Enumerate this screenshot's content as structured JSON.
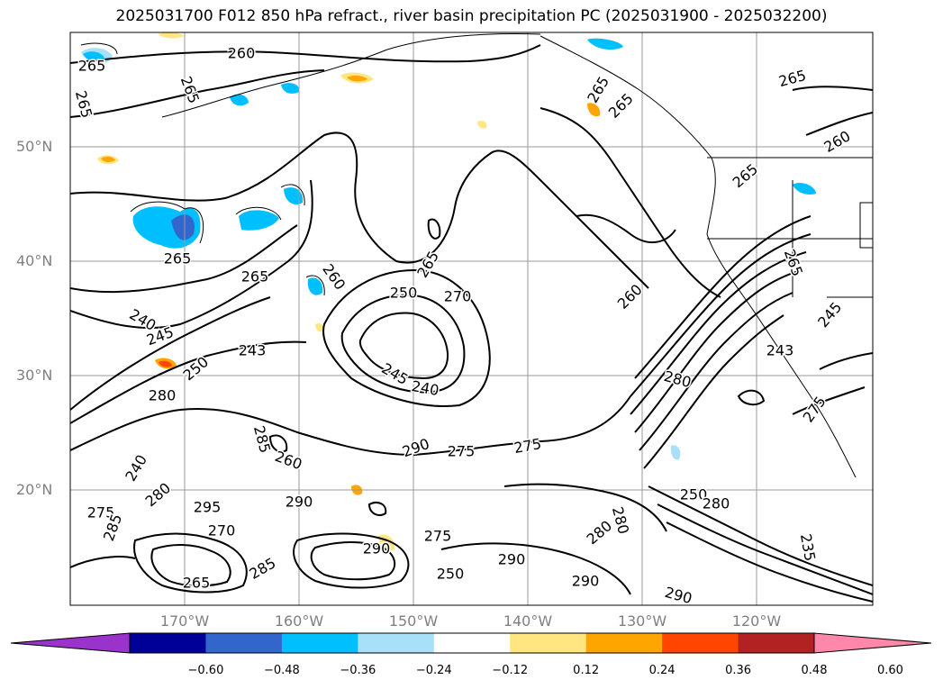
{
  "title": "2025031700 F012 850 hPa refract., river basin precipitation PC (2025031900 - 2025032200)",
  "map": {
    "lat_labels": [
      "50°N",
      "40°N",
      "30°N",
      "20°N"
    ],
    "lon_labels": [
      "170°W",
      "160°W",
      "150°W",
      "140°W",
      "130°W",
      "120°W"
    ],
    "contour_labels": [
      "265",
      "260",
      "265",
      "265",
      "265",
      "265",
      "260",
      "265",
      "265",
      "265",
      "265",
      "260",
      "270",
      "260",
      "265",
      "240",
      "245",
      "250",
      "265",
      "280",
      "245",
      "240",
      "243",
      "250",
      "275",
      "275",
      "280",
      "275",
      "245",
      "243",
      "240",
      "285",
      "260",
      "290",
      "295",
      "280",
      "275",
      "285",
      "250",
      "270",
      "275",
      "285",
      "280",
      "290",
      "265",
      "280",
      "290",
      "290",
      "290",
      "250",
      "280",
      "290",
      "235"
    ]
  },
  "colorbar": {
    "colors": [
      "#9933cc",
      "#000099",
      "#3366cc",
      "#00bfff",
      "#a8e0fa",
      "#ffffff",
      "#ffe680",
      "#ffa500",
      "#ff4500",
      "#b22222",
      "#ff88aa"
    ],
    "tick_labels": [
      "−0.60",
      "−0.48",
      "−0.36",
      "−0.24",
      "−0.12",
      "0.12",
      "0.24",
      "0.36",
      "0.48",
      "0.60"
    ]
  }
}
